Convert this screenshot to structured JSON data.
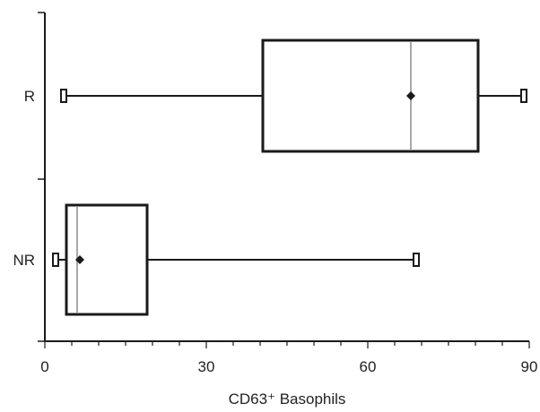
{
  "chart_data": {
    "type": "boxplot",
    "orientation": "horizontal",
    "title": "",
    "xlabel": "CD63⁺ Basophils",
    "ylabel": "",
    "xlim": [
      0,
      90
    ],
    "xticks": [
      0,
      30,
      60,
      90
    ],
    "xtick_labels": [
      "0",
      "30",
      "60",
      "90"
    ],
    "categories": [
      "R",
      "NR"
    ],
    "boxes": [
      {
        "category": "R",
        "min": 3.5,
        "q1": 40.5,
        "median": 68,
        "q3": 80.5,
        "max": 89,
        "mean": 68,
        "outliers": []
      },
      {
        "category": "NR",
        "min": 2,
        "q1": 4,
        "median": 6,
        "q3": 19,
        "max": 69,
        "mean": 6.5,
        "outliers": []
      }
    ],
    "grid": false,
    "legend": "none"
  },
  "colors": {
    "box_stroke": "#1a1a1a",
    "median_line": "#a9a9a9",
    "axis": "#1a1a1a",
    "background": "#ffffff"
  }
}
